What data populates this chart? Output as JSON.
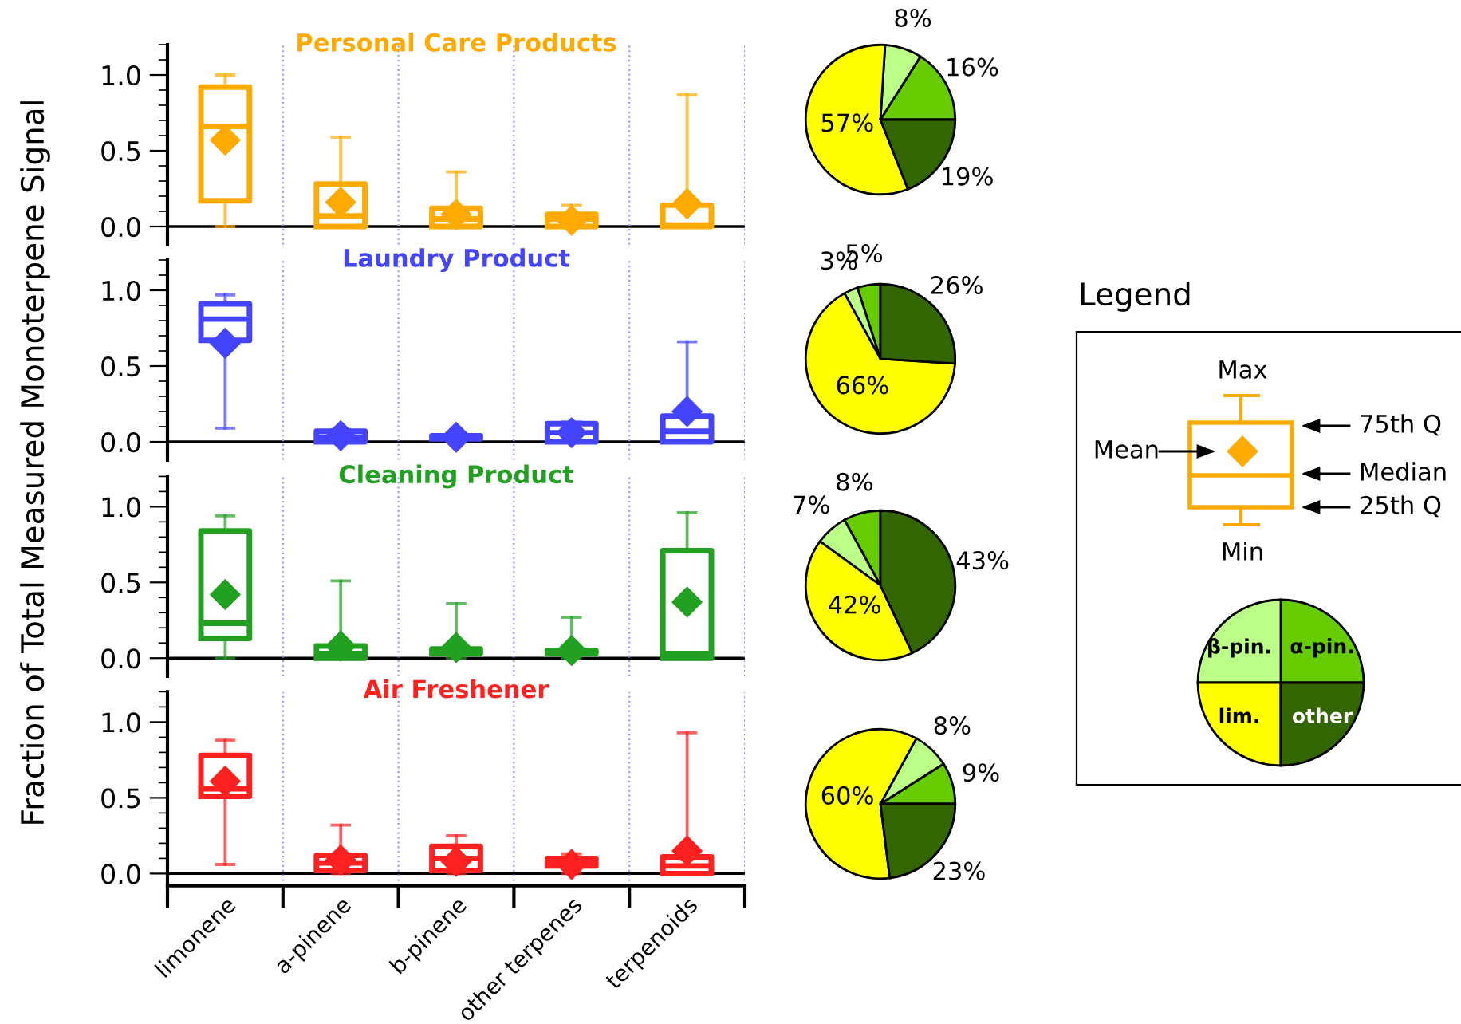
{
  "chart_data": [
    {
      "type": "box",
      "title": "Personal Care Products",
      "ylabel": "Fraction of Total Measured Monoterpene Signal",
      "categories": [
        null,
        null,
        null,
        null,
        null
      ],
      "ylim": [
        -0.12,
        1.2
      ],
      "yticks": [
        {
          "value": 0,
          "label": "0.0"
        },
        {
          "value": 0.5,
          "label": "0.5"
        },
        {
          "value": 1,
          "label": "1.0"
        }
      ],
      "grid": "x",
      "tick_labels": "y",
      "marker": "diamond",
      "ref_lines": [
        {
          "axis": "y",
          "value": 0,
          "color": "#000000"
        }
      ],
      "series": [
        {
          "color": "#ffaa00",
          "boxes": [
            {
              "low": 0,
              "q1": 0.17,
              "median": 0.66,
              "q3": 0.92,
              "high": 1.0,
              "mean": 0.57
            },
            {
              "low": 0,
              "q1": 0,
              "median": 0.07,
              "q3": 0.28,
              "high": 0.59,
              "mean": 0.16
            },
            {
              "low": 0,
              "q1": 0,
              "median": 0.05,
              "q3": 0.12,
              "high": 0.36,
              "mean": 0.08
            },
            {
              "low": 0,
              "q1": 0,
              "median": 0.05,
              "q3": 0.08,
              "high": 0.14,
              "mean": 0.04
            },
            {
              "low": 0,
              "q1": 0,
              "median": 0.01,
              "q3": 0.14,
              "high": 0.87,
              "mean": 0.15
            }
          ]
        }
      ]
    },
    {
      "type": "box",
      "title": "Laundry Product",
      "categories": [
        null,
        null,
        null,
        null,
        null
      ],
      "ylim": [
        -0.12,
        1.2
      ],
      "yticks": [
        {
          "value": 0,
          "label": "0.0"
        },
        {
          "value": 0.5,
          "label": "0.5"
        },
        {
          "value": 1,
          "label": "1.0"
        }
      ],
      "grid": "x",
      "tick_labels": "y",
      "marker": "diamond",
      "ref_lines": [
        {
          "axis": "y",
          "value": 0,
          "color": "#000000"
        }
      ],
      "series": [
        {
          "color": "#4444ff",
          "boxes": [
            {
              "low": 0.09,
              "q1": 0.67,
              "median": 0.81,
              "q3": 0.91,
              "high": 0.97,
              "mean": 0.65
            },
            {
              "low": 0,
              "q1": 0,
              "median": 0.03,
              "q3": 0.07,
              "high": 0.08,
              "mean": 0.04
            },
            {
              "low": 0,
              "q1": 0.02,
              "median": 0.03,
              "q3": 0.04,
              "high": 0.04,
              "mean": 0.03
            },
            {
              "low": 0,
              "q1": 0,
              "median": 0.06,
              "q3": 0.12,
              "high": 0.13,
              "mean": 0.06
            },
            {
              "low": 0,
              "q1": 0,
              "median": 0.07,
              "q3": 0.17,
              "high": 0.66,
              "mean": 0.2
            }
          ]
        }
      ]
    },
    {
      "type": "box",
      "title": "Cleaning Product",
      "categories": [
        null,
        null,
        null,
        null,
        null
      ],
      "ylim": [
        -0.12,
        1.2
      ],
      "yticks": [
        {
          "value": 0,
          "label": "0.0"
        },
        {
          "value": 0.5,
          "label": "0.5"
        },
        {
          "value": 1,
          "label": "1.0"
        }
      ],
      "grid": "x",
      "tick_labels": "y",
      "marker": "diamond",
      "ref_lines": [
        {
          "axis": "y",
          "value": 0,
          "color": "#000000"
        }
      ],
      "series": [
        {
          "color": "#22a022",
          "boxes": [
            {
              "low": 0,
              "q1": 0.13,
              "median": 0.23,
              "q3": 0.84,
              "high": 0.94,
              "mean": 0.42
            },
            {
              "low": 0,
              "q1": 0,
              "median": 0.03,
              "q3": 0.08,
              "high": 0.51,
              "mean": 0.08
            },
            {
              "low": 0,
              "q1": 0.03,
              "median": 0.05,
              "q3": 0.06,
              "high": 0.36,
              "mean": 0.07
            },
            {
              "low": 0,
              "q1": 0.03,
              "median": 0.04,
              "q3": 0.05,
              "high": 0.27,
              "mean": 0.05
            },
            {
              "low": 0,
              "q1": 0,
              "median": 0.03,
              "q3": 0.71,
              "high": 0.96,
              "mean": 0.37
            }
          ]
        }
      ]
    },
    {
      "type": "box",
      "title": "Air Freshener",
      "categories": [
        "limonene",
        "a-pinene",
        "b-pinene",
        "other terpenes",
        "terpenoids"
      ],
      "ylim": [
        -0.08,
        1.2
      ],
      "yticks": [
        {
          "value": 0,
          "label": "0.0"
        },
        {
          "value": 0.5,
          "label": "0.5"
        },
        {
          "value": 1,
          "label": "1.0"
        }
      ],
      "grid": "x",
      "marker": "diamond",
      "ref_lines": [
        {
          "axis": "y",
          "value": 0,
          "color": "#000000"
        }
      ],
      "series": [
        {
          "color": "#ff2020",
          "boxes": [
            {
              "low": 0.06,
              "q1": 0.51,
              "median": 0.56,
              "q3": 0.78,
              "high": 0.88,
              "mean": 0.61
            },
            {
              "low": 0,
              "q1": 0.02,
              "median": 0.07,
              "q3": 0.12,
              "high": 0.32,
              "mean": 0.09
            },
            {
              "low": 0,
              "q1": 0.02,
              "median": 0.1,
              "q3": 0.18,
              "high": 0.25,
              "mean": 0.08
            },
            {
              "low": 0,
              "q1": 0.05,
              "median": 0.07,
              "q3": 0.1,
              "high": 0.13,
              "mean": 0.06
            },
            {
              "low": 0,
              "q1": 0,
              "median": 0.05,
              "q3": 0.11,
              "high": 0.93,
              "mean": 0.15
            }
          ]
        }
      ]
    },
    {
      "type": "pie",
      "categories": [
        null,
        null,
        null,
        null
      ],
      "values": [
        16,
        8,
        57,
        19
      ],
      "value_labels": [
        "16%",
        "8%",
        "57%",
        "19%"
      ],
      "colors": [
        "#66cc00",
        "#bbff88",
        "#ffff00",
        "#336600"
      ]
    },
    {
      "type": "pie",
      "categories": [
        null,
        null,
        null,
        null
      ],
      "values": [
        5,
        3,
        66,
        26
      ],
      "value_labels": [
        "5%",
        "3%",
        "66%",
        "26%"
      ],
      "colors": [
        "#66cc00",
        "#bbff88",
        "#ffff00",
        "#336600"
      ]
    },
    {
      "type": "pie",
      "categories": [
        null,
        null,
        null,
        null
      ],
      "values": [
        8,
        7,
        42,
        43
      ],
      "value_labels": [
        "8%",
        "7%",
        "42%",
        "43%"
      ],
      "colors": [
        "#66cc00",
        "#bbff88",
        "#ffff00",
        "#336600"
      ]
    },
    {
      "type": "pie",
      "categories": [
        null,
        null,
        null,
        null
      ],
      "values": [
        9,
        8,
        60,
        23
      ],
      "value_labels": [
        "9%",
        "8%",
        "60%",
        "23%"
      ],
      "colors": [
        "#66cc00",
        "#bbff88",
        "#ffff00",
        "#336600"
      ]
    },
    {
      "type": "other",
      "title": "Legend",
      "annotations": [
        "Max",
        "Mean",
        "75th Q",
        "Median",
        "25th Q",
        "Min"
      ]
    },
    {
      "type": "pie",
      "categories": [
        "α-pin.",
        "β-pin.",
        "lim.",
        "other"
      ],
      "values": [
        25,
        25,
        25,
        25
      ],
      "colors": [
        "#66cc00",
        "#bbff88",
        "#ffff00",
        "#336600"
      ]
    }
  ]
}
